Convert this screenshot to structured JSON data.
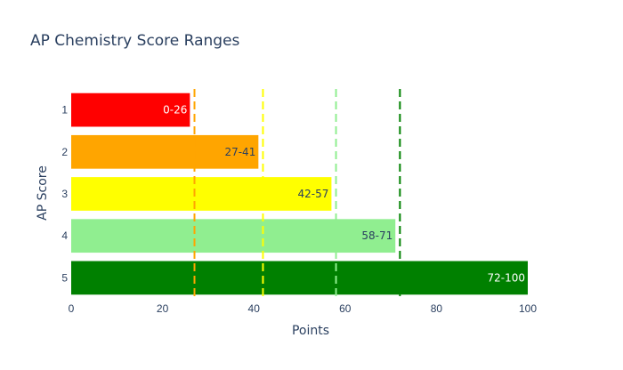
{
  "chart_data": {
    "type": "bar",
    "orientation": "horizontal",
    "title": "AP Chemistry Score Ranges",
    "xlabel": "Points",
    "ylabel": "AP Score",
    "xlim": [
      0,
      100
    ],
    "x_ticks": [
      "0",
      "20",
      "40",
      "60",
      "80",
      "100"
    ],
    "grid": false,
    "categories": [
      "1",
      "2",
      "3",
      "4",
      "5"
    ],
    "values": [
      26,
      41,
      57,
      71,
      100
    ],
    "bar_labels": [
      "0-26",
      "27-41",
      "42-57",
      "58-71",
      "72-100"
    ],
    "bar_colors": [
      "#ff0000",
      "#ffa500",
      "#ffff00",
      "#90ee90",
      "#008000"
    ],
    "label_colors": [
      "#ffffff",
      "#2a3f5f",
      "#2a3f5f",
      "#2a3f5f",
      "#ffffff"
    ],
    "threshold_lines": [
      {
        "value": 27,
        "color": "#ffa500",
        "dash": "dashed"
      },
      {
        "value": 42,
        "color": "#ffff00",
        "dash": "dashed"
      },
      {
        "value": 58,
        "color": "#90ee90",
        "dash": "dashed"
      },
      {
        "value": 72,
        "color": "#008000",
        "dash": "dashed"
      }
    ]
  }
}
